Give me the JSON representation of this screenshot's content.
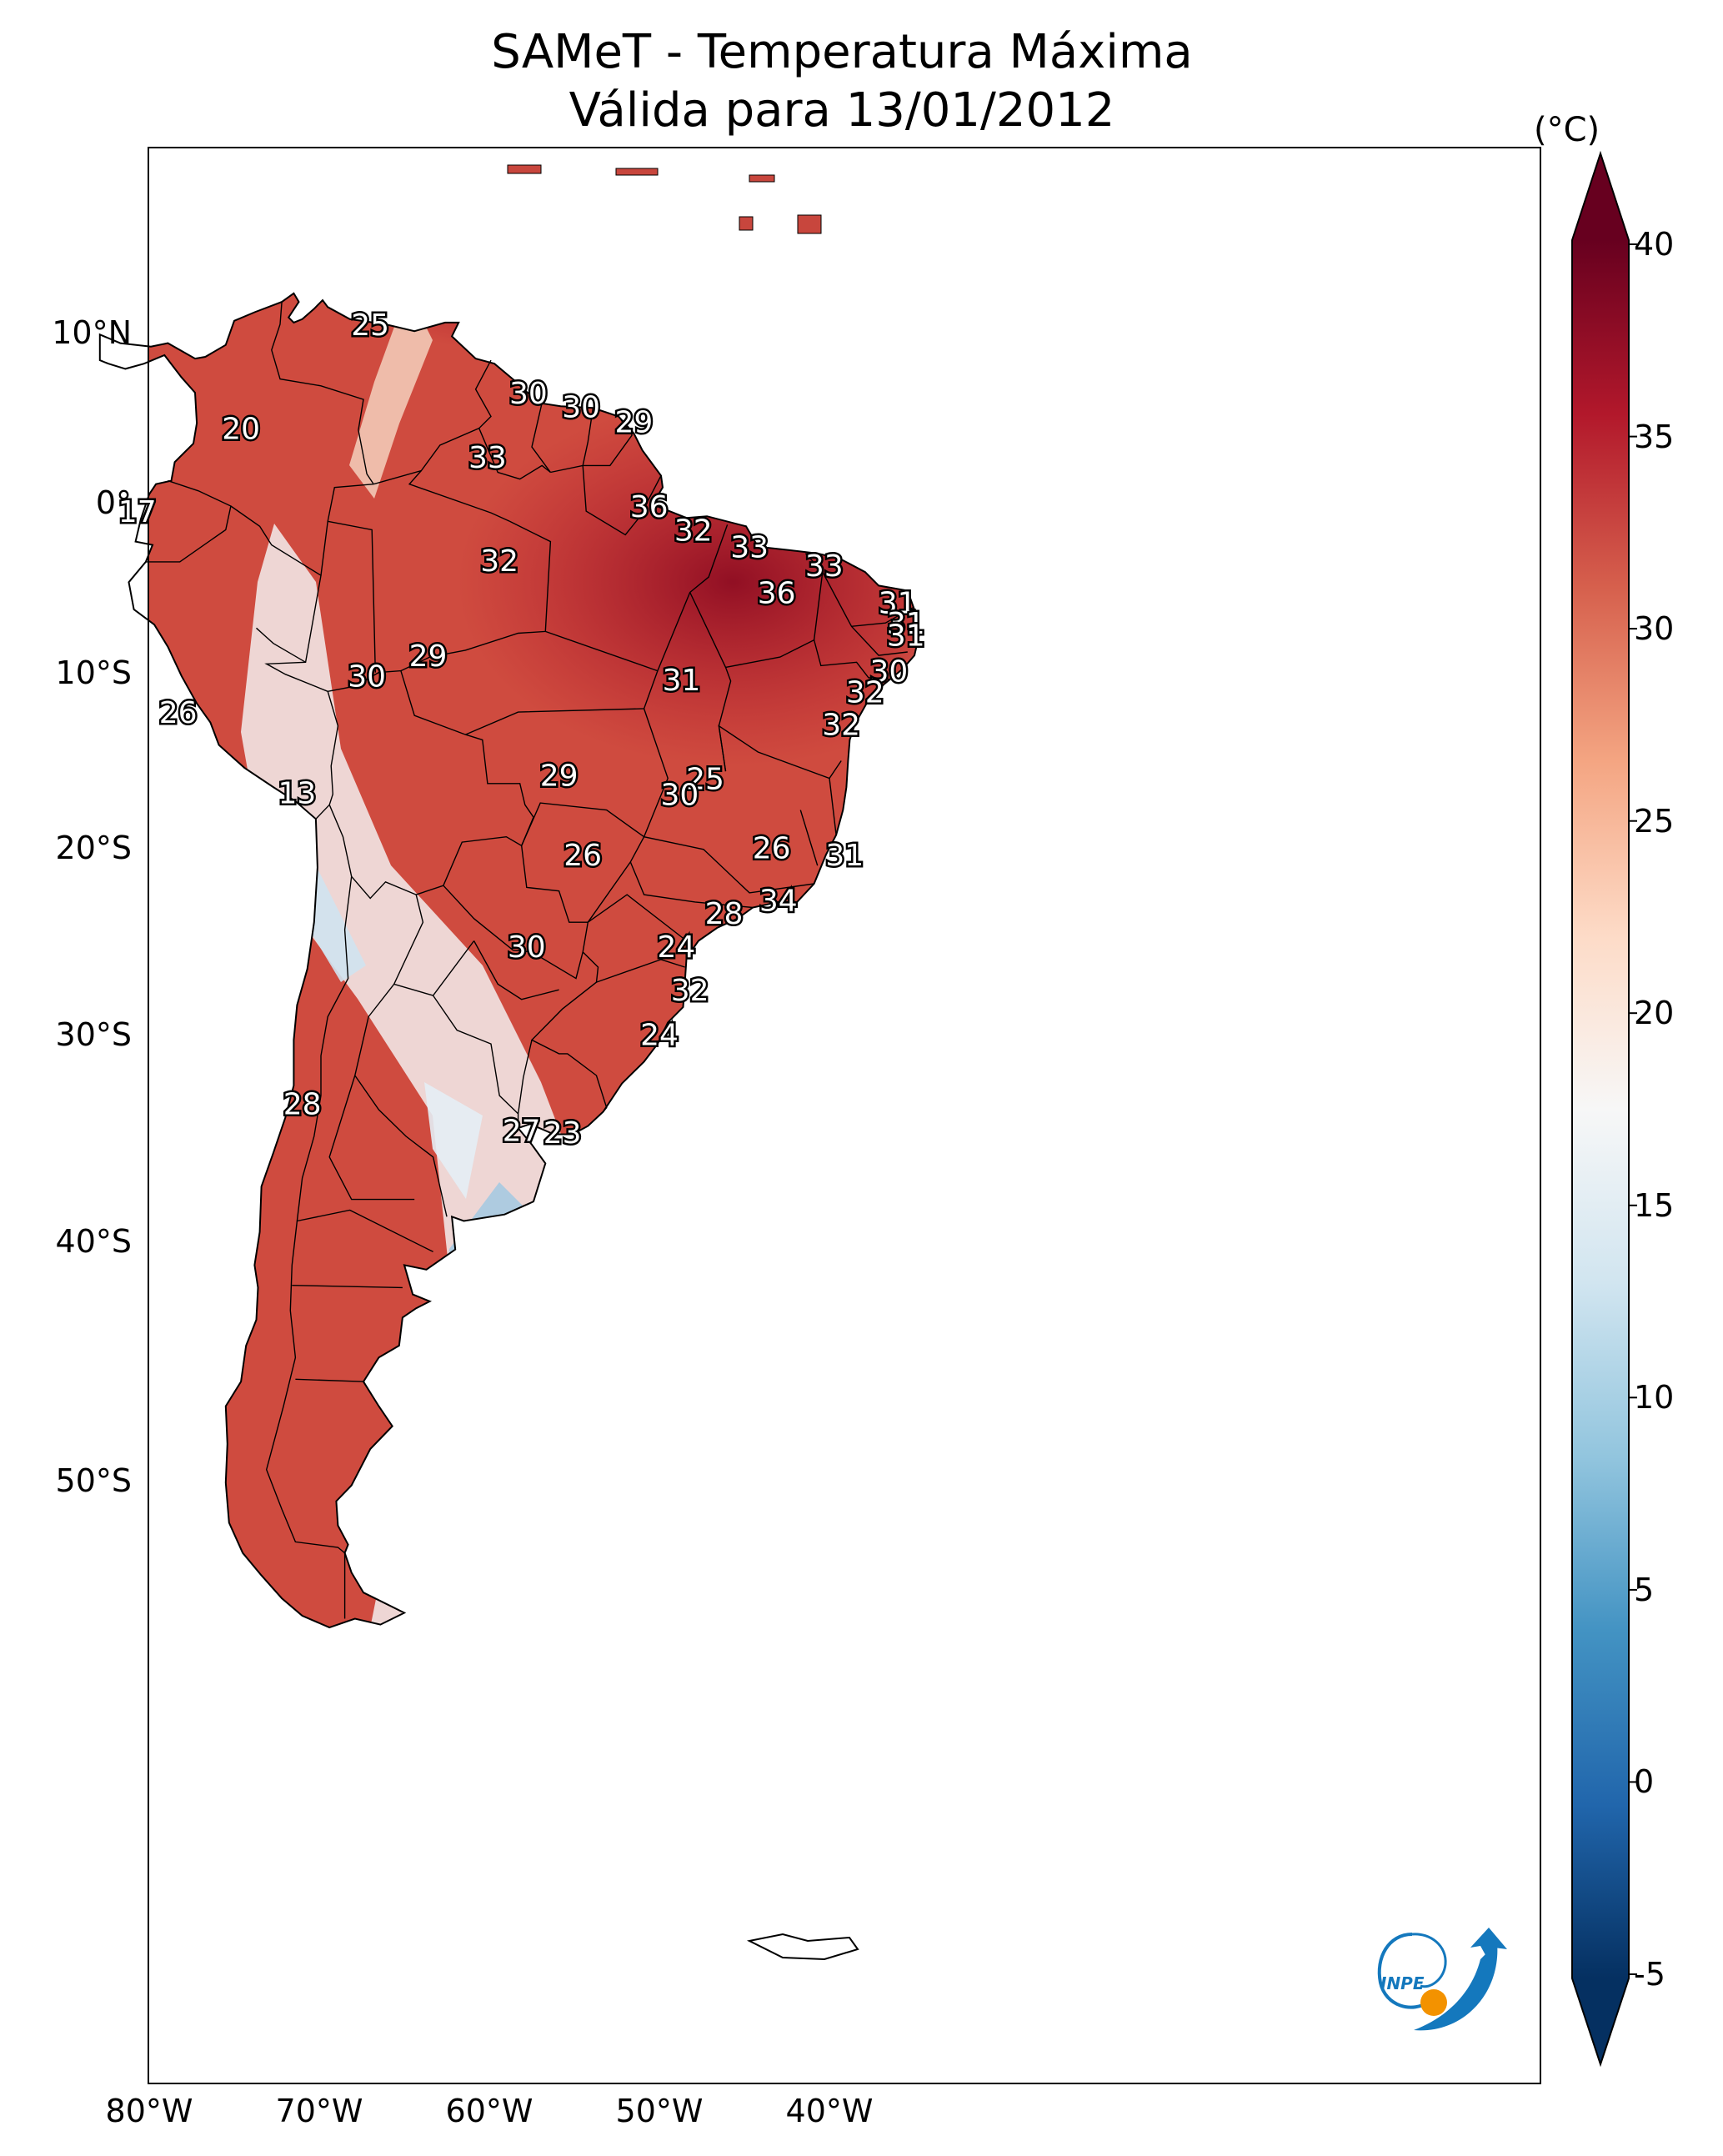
{
  "title_line1": "SAMeT - Temperatura Máxima",
  "title_line2": "Válida para 13/01/2012",
  "unit": "(°C)",
  "lat_labels": [
    {
      "lat": 10,
      "text": "10°N"
    },
    {
      "lat": 0,
      "text": "0°"
    },
    {
      "lat": -10,
      "text": "10°S"
    },
    {
      "lat": -20,
      "text": "20°S"
    },
    {
      "lat": -30,
      "text": "30°S"
    },
    {
      "lat": -40,
      "text": "40°S"
    },
    {
      "lat": -50,
      "text": "50°S"
    }
  ],
  "lon_labels": [
    {
      "lon": -80,
      "text": "80°W"
    },
    {
      "lon": -70,
      "text": "70°W"
    },
    {
      "lon": -60,
      "text": "60°W"
    },
    {
      "lon": -50,
      "text": "50°W"
    },
    {
      "lon": -40,
      "text": "40°W"
    }
  ],
  "colorbar": {
    "min": -5,
    "max": 40,
    "ticks": [
      "40",
      "35",
      "30",
      "25",
      "20",
      "15",
      "10",
      "5",
      "0",
      "-5"
    ],
    "colors": [
      "#053061",
      "#2166ac",
      "#4393c3",
      "#92c5de",
      "#d1e5f0",
      "#f7f7f7",
      "#fddbc7",
      "#f4a582",
      "#d6604d",
      "#b2182b",
      "#67001f"
    ]
  },
  "map_values": [
    {
      "lon": -67.1,
      "lat": 10.6,
      "v": "25"
    },
    {
      "lon": -74.7,
      "lat": 4.5,
      "v": "20"
    },
    {
      "lon": -57.8,
      "lat": 6.6,
      "v": "30"
    },
    {
      "lon": -54.7,
      "lat": 5.8,
      "v": "30"
    },
    {
      "lon": -51.6,
      "lat": 4.9,
      "v": "29"
    },
    {
      "lon": -60.2,
      "lat": 2.8,
      "v": "33"
    },
    {
      "lon": -80.8,
      "lat": -0.4,
      "v": "17"
    },
    {
      "lon": -50.7,
      "lat": -0.1,
      "v": "36"
    },
    {
      "lon": -48.1,
      "lat": -1.5,
      "v": "32"
    },
    {
      "lon": -44.8,
      "lat": -2.5,
      "v": "33"
    },
    {
      "lon": -40.4,
      "lat": -3.6,
      "v": "33"
    },
    {
      "lon": -59.5,
      "lat": -3.3,
      "v": "32"
    },
    {
      "lon": -43.2,
      "lat": -5.2,
      "v": "36"
    },
    {
      "lon": -36.1,
      "lat": -5.8,
      "v": "31"
    },
    {
      "lon": -35.6,
      "lat": -7.0,
      "v": "31"
    },
    {
      "lon": -35.6,
      "lat": -7.7,
      "v": "31"
    },
    {
      "lon": -36.6,
      "lat": -9.8,
      "v": "30"
    },
    {
      "lon": -38.0,
      "lat": -11.0,
      "v": "32"
    },
    {
      "lon": -39.4,
      "lat": -12.9,
      "v": "32"
    },
    {
      "lon": -48.8,
      "lat": -10.3,
      "v": "31"
    },
    {
      "lon": -63.7,
      "lat": -8.9,
      "v": "29"
    },
    {
      "lon": -67.3,
      "lat": -10.1,
      "v": "30"
    },
    {
      "lon": -78.4,
      "lat": -12.2,
      "v": "26"
    },
    {
      "lon": -71.4,
      "lat": -16.8,
      "v": "13"
    },
    {
      "lon": -56.0,
      "lat": -15.8,
      "v": "29"
    },
    {
      "lon": -47.4,
      "lat": -16.0,
      "v": "25"
    },
    {
      "lon": -48.9,
      "lat": -16.9,
      "v": "30"
    },
    {
      "lon": -54.6,
      "lat": -20.3,
      "v": "26"
    },
    {
      "lon": -43.5,
      "lat": -19.9,
      "v": "26"
    },
    {
      "lon": -39.2,
      "lat": -20.3,
      "v": "31"
    },
    {
      "lon": -43.1,
      "lat": -22.8,
      "v": "34"
    },
    {
      "lon": -46.3,
      "lat": -23.5,
      "v": "28"
    },
    {
      "lon": -57.9,
      "lat": -25.3,
      "v": "30"
    },
    {
      "lon": -49.1,
      "lat": -25.3,
      "v": "24"
    },
    {
      "lon": -48.3,
      "lat": -27.6,
      "v": "32"
    },
    {
      "lon": -50.1,
      "lat": -29.9,
      "v": "24"
    },
    {
      "lon": -71.1,
      "lat": -33.4,
      "v": "28"
    },
    {
      "lon": -58.2,
      "lat": -34.7,
      "v": "27"
    },
    {
      "lon": -55.8,
      "lat": -34.8,
      "v": "23"
    }
  ],
  "logo_text": "INPE"
}
